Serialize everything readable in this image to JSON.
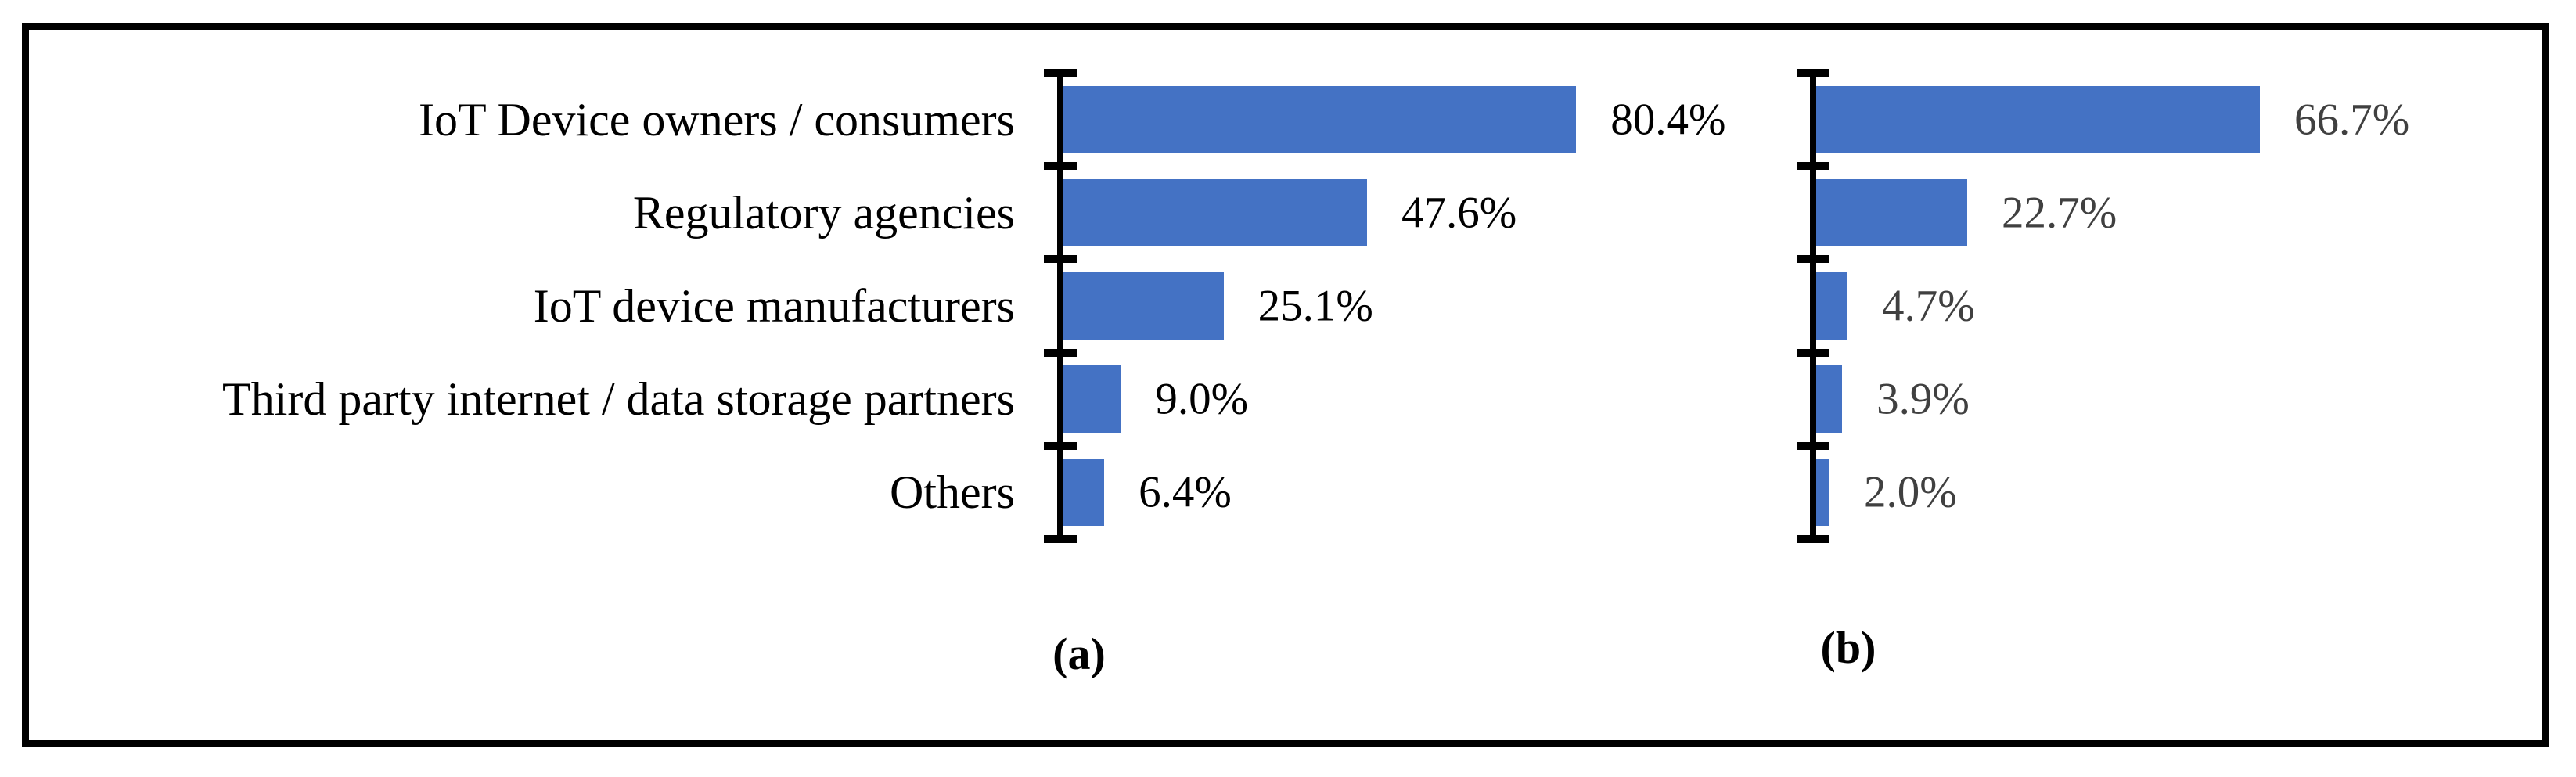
{
  "figure": {
    "background": "#ffffff",
    "frame_border_color": "#000000"
  },
  "colors": {
    "bar_fill": "#4472C4",
    "axis": "#000000",
    "value_label_a": "#000000",
    "value_label_b": "#404040",
    "category_label": "#000000"
  },
  "chart_data": [
    {
      "id": "a",
      "type": "bar",
      "orientation": "horizontal",
      "caption": "(a)",
      "categories": [
        "IoT Device owners / consumers",
        "Regulatory agencies",
        "IoT device manufacturers",
        "Third party internet / data storage partners",
        "Others"
      ],
      "values": [
        80.4,
        47.6,
        25.1,
        9.0,
        6.4
      ],
      "value_labels": [
        "80.4%",
        "47.6%",
        "25.1%",
        "9.0%",
        "6.4%"
      ],
      "xlim": [
        0,
        100
      ],
      "grid": false,
      "legend": false,
      "value_label_color": "#000000"
    },
    {
      "id": "b",
      "type": "bar",
      "orientation": "horizontal",
      "caption": "(b)",
      "categories": [
        "IoT Device owners / consumers",
        "Regulatory agencies",
        "IoT device manufacturers",
        "Third party internet / data storage partners",
        "Others"
      ],
      "values": [
        66.7,
        22.7,
        4.7,
        3.9,
        2.0
      ],
      "value_labels": [
        "66.7%",
        "22.7%",
        "4.7%",
        "3.9%",
        "2.0%"
      ],
      "xlim": [
        0,
        100
      ],
      "grid": false,
      "legend": false,
      "value_label_color": "#404040"
    }
  ]
}
